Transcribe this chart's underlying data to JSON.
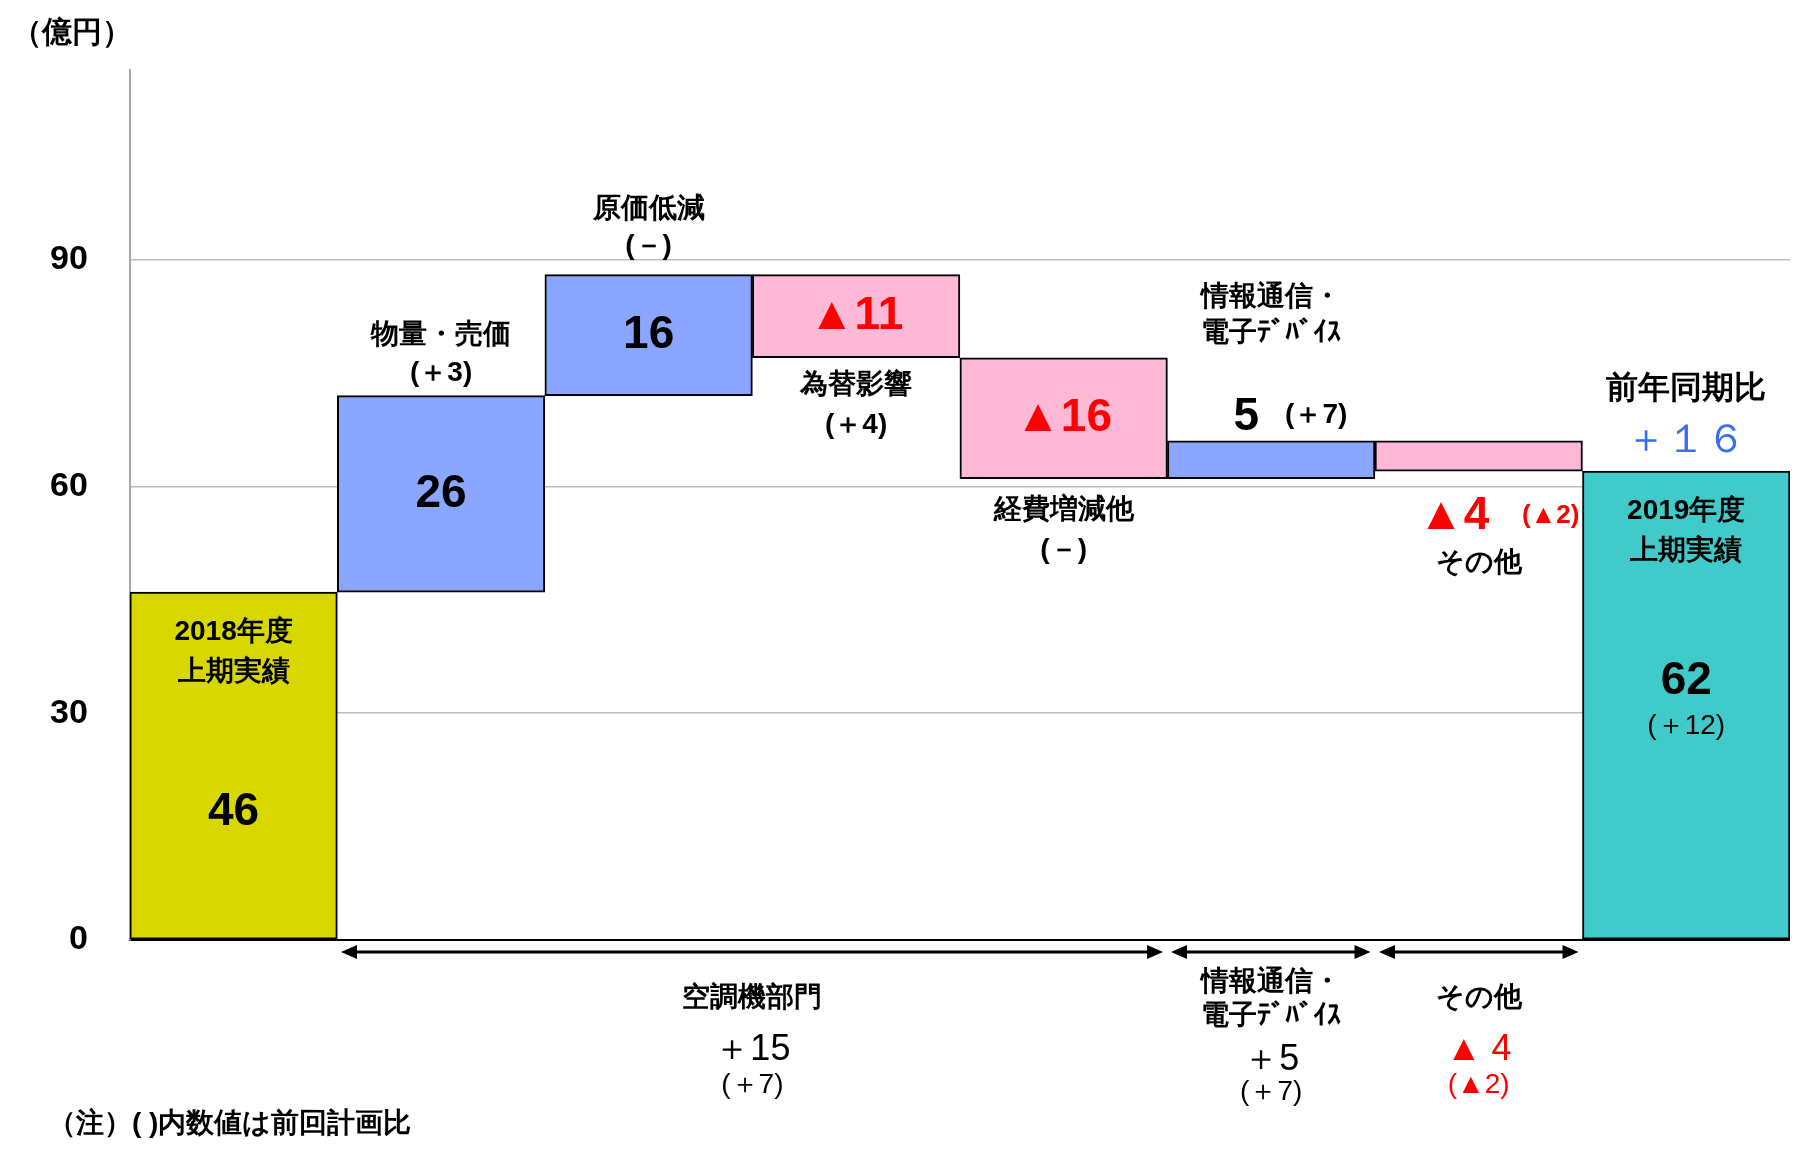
{
  "chart_data": {
    "type": "bar",
    "ylabel": "（億円）",
    "categories": [
      "2018年度上期実績",
      "物量・売価",
      "原価低減",
      "為替影響",
      "経費増減他",
      "情報通信・電子ﾃﾞﾊﾞｲｽ",
      "その他",
      "2019年度上期実績"
    ],
    "values": [
      46,
      26,
      16,
      -11,
      -16,
      5,
      -4,
      62
    ],
    "base": [
      0,
      46,
      72,
      88,
      77,
      61,
      66,
      0
    ],
    "colors": [
      "#d8d800",
      "#8aa6ff",
      "#8aa6ff",
      "#ffb8d6",
      "#ffb8d6",
      "#8aa6ff",
      "#ffb8d6",
      "#40caca"
    ],
    "value_labels": [
      "46",
      "26",
      "16",
      "▲11",
      "▲16",
      "5",
      "▲4",
      "62"
    ],
    "ylim": [
      0,
      115
    ],
    "yticks": [
      0,
      30,
      60,
      90
    ],
    "grid": "y",
    "annotations": [
      "(＋3)",
      "(－)",
      "(＋4)",
      "(－)",
      "(＋7)",
      "(▲2)",
      "(＋12)",
      "前年同期比",
      "＋１６",
      "空調機部門",
      "＋15",
      "(＋7)",
      "情報通信・電子ﾃﾞﾊﾞｲｽ",
      "＋5",
      "(＋7)",
      "その他",
      "▲ 4",
      "(▲2)",
      "（注）( )内数値は前回計画比"
    ]
  }
}
